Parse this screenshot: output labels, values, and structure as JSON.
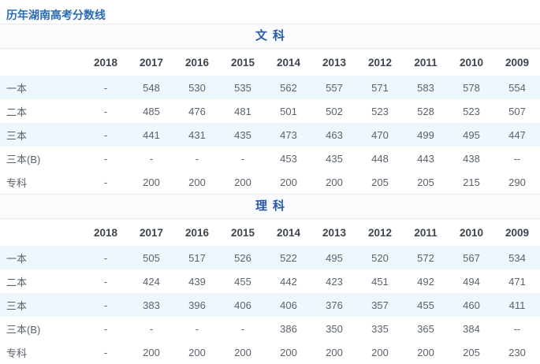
{
  "page": {
    "title": "历年湖南高考分数线"
  },
  "colors": {
    "title_blue": "#2a6bb5",
    "section_blue": "#2a58a6",
    "year_text": "#3c4550",
    "cell_text": "#5a626d",
    "stripe_bg": "#eef7fc",
    "band_bg": "#fafbfc",
    "border": "#eaeaea"
  },
  "sections": [
    {
      "title": "文科",
      "years": [
        "2018",
        "2017",
        "2016",
        "2015",
        "2014",
        "2013",
        "2012",
        "2011",
        "2010",
        "2009"
      ],
      "rows": [
        {
          "label": "一本",
          "values": [
            "-",
            "548",
            "530",
            "535",
            "562",
            "557",
            "571",
            "583",
            "578",
            "554"
          ]
        },
        {
          "label": "二本",
          "values": [
            "-",
            "485",
            "476",
            "481",
            "501",
            "502",
            "523",
            "528",
            "523",
            "507"
          ]
        },
        {
          "label": "三本",
          "values": [
            "-",
            "441",
            "431",
            "435",
            "473",
            "463",
            "470",
            "499",
            "495",
            "447"
          ]
        },
        {
          "label": "三本(B)",
          "values": [
            "-",
            "-",
            "-",
            "-",
            "453",
            "435",
            "448",
            "443",
            "438",
            "--"
          ]
        },
        {
          "label": "专科",
          "values": [
            "-",
            "200",
            "200",
            "200",
            "200",
            "200",
            "205",
            "205",
            "215",
            "290"
          ]
        }
      ]
    },
    {
      "title": "理科",
      "years": [
        "2018",
        "2017",
        "2016",
        "2015",
        "2014",
        "2013",
        "2012",
        "2011",
        "2010",
        "2009"
      ],
      "rows": [
        {
          "label": "一本",
          "values": [
            "-",
            "505",
            "517",
            "526",
            "522",
            "495",
            "520",
            "572",
            "567",
            "534"
          ]
        },
        {
          "label": "二本",
          "values": [
            "-",
            "424",
            "439",
            "455",
            "442",
            "423",
            "451",
            "492",
            "494",
            "471"
          ]
        },
        {
          "label": "三本",
          "values": [
            "-",
            "383",
            "396",
            "406",
            "406",
            "376",
            "357",
            "455",
            "460",
            "411"
          ]
        },
        {
          "label": "三本(B)",
          "values": [
            "-",
            "-",
            "-",
            "-",
            "386",
            "350",
            "335",
            "365",
            "384",
            "--"
          ]
        },
        {
          "label": "专科",
          "values": [
            "-",
            "200",
            "200",
            "200",
            "200",
            "200",
            "200",
            "200",
            "205",
            "230"
          ]
        }
      ]
    }
  ]
}
